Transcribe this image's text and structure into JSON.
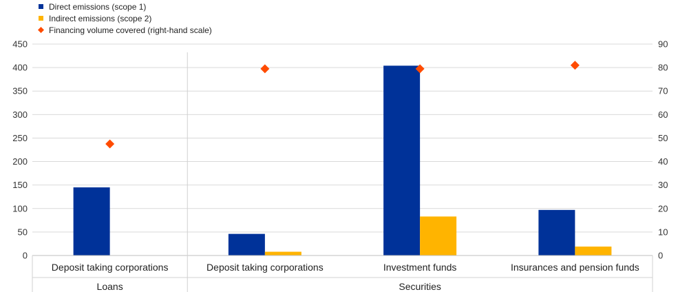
{
  "chart_data": {
    "type": "bar",
    "categories": [
      "Deposit taking corporations",
      "Deposit taking corporations",
      "Investment funds",
      "Insurances and pension funds"
    ],
    "groups": [
      {
        "label": "Loans",
        "span": [
          0,
          0
        ]
      },
      {
        "label": "Securities",
        "span": [
          1,
          3
        ]
      }
    ],
    "series": [
      {
        "name": "Direct emissions (scope 1)",
        "type": "bar",
        "axis": "left",
        "color": "#003299",
        "values": [
          145,
          46,
          404,
          97
        ]
      },
      {
        "name": "Indirect emissions (scope 2)",
        "type": "bar",
        "axis": "left",
        "color": "#FFB400",
        "values": [
          0,
          8,
          83,
          19
        ]
      },
      {
        "name": "Financing volume covered (right-hand scale)",
        "type": "scatter",
        "marker": "diamond",
        "axis": "right",
        "color": "#FF4B00",
        "values": [
          47.5,
          79.5,
          79.5,
          81
        ]
      }
    ],
    "ylim": [
      0,
      450
    ],
    "yticks": [
      "0",
      "50",
      "100",
      "150",
      "200",
      "250",
      "300",
      "350",
      "400",
      "450"
    ],
    "y2lim": [
      0,
      90
    ],
    "y2ticks": [
      "0",
      "10",
      "20",
      "30",
      "40",
      "50",
      "60",
      "70",
      "80",
      "90"
    ],
    "grid": true,
    "legend": "top-left"
  }
}
